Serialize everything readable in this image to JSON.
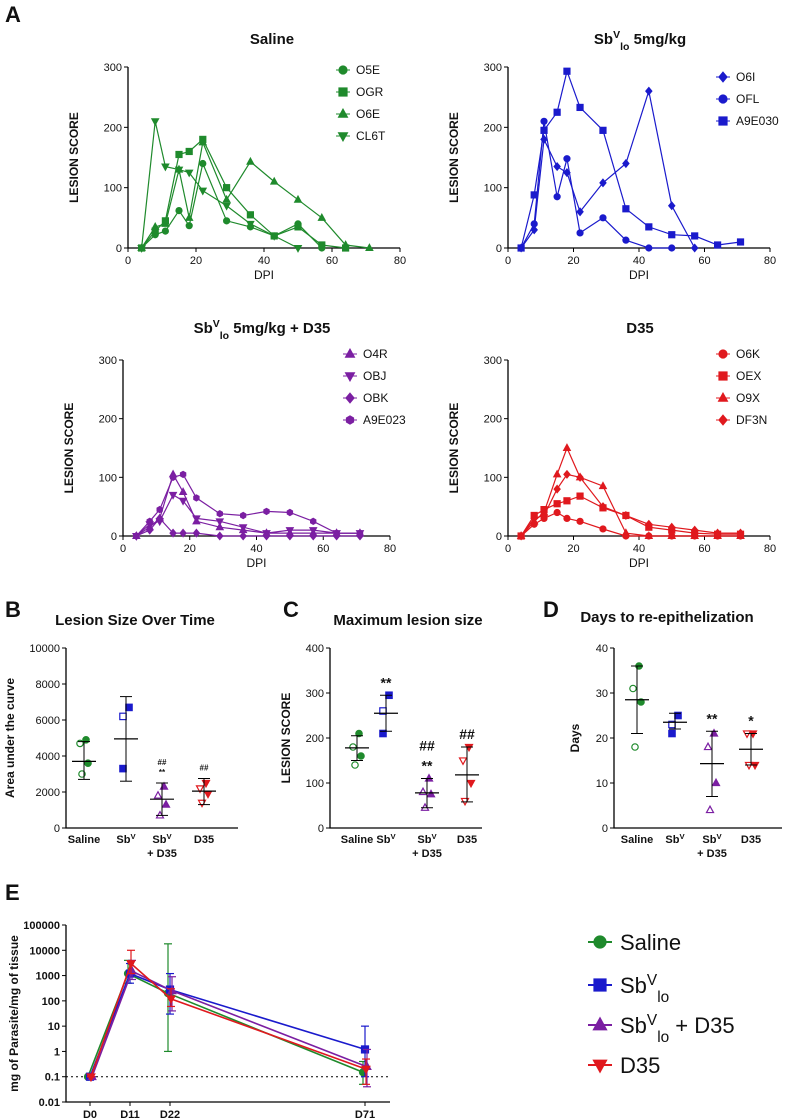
{
  "panel_labels": {
    "a": "A",
    "b": "B",
    "c": "C",
    "d": "D",
    "e": "E"
  },
  "colors": {
    "saline": "#1f8a2c",
    "sbv": "#1a1acc",
    "combo": "#7b1fa2",
    "d35": "#e0191e"
  },
  "chart_data": [
    {
      "id": "a1",
      "type": "line",
      "title": "Saline",
      "xlabel": "DPI",
      "ylabel": "LESION SCORE",
      "xlim": [
        0,
        80
      ],
      "ylim": [
        0,
        300
      ],
      "xticks": [
        "0",
        "20",
        "40",
        "60",
        "80"
      ],
      "yticks": [
        "0",
        "100",
        "200",
        "300"
      ],
      "color": "#1f8a2c",
      "series": [
        {
          "name": "O5E",
          "marker": "circle",
          "x": [
            4,
            8,
            11,
            15,
            18,
            22,
            29,
            36,
            43,
            50,
            57
          ],
          "y": [
            0,
            22,
            28,
            62,
            37,
            140,
            45,
            35,
            20,
            40,
            0
          ]
        },
        {
          "name": "OGR",
          "marker": "square",
          "x": [
            4,
            8,
            11,
            15,
            18,
            22,
            29,
            36,
            43,
            50,
            57,
            64
          ],
          "y": [
            0,
            28,
            45,
            155,
            160,
            180,
            100,
            55,
            20,
            35,
            5,
            0
          ]
        },
        {
          "name": "O6E",
          "marker": "triangle",
          "x": [
            4,
            8,
            11,
            15,
            18,
            22,
            29,
            36,
            43,
            50,
            57,
            64,
            71
          ],
          "y": [
            0,
            35,
            40,
            130,
            50,
            175,
            80,
            143,
            110,
            80,
            50,
            5,
            0
          ]
        },
        {
          "name": "CL6T",
          "marker": "triangle-down",
          "x": [
            4,
            8,
            11,
            15,
            18,
            22,
            29,
            36,
            43,
            50
          ],
          "y": [
            0,
            210,
            135,
            130,
            125,
            95,
            70,
            40,
            20,
            0
          ]
        }
      ]
    },
    {
      "id": "a2",
      "type": "line",
      "title": "Sb",
      "title_sup": "V",
      "title_sub": "lo",
      "title_rest": " 5mg/kg",
      "xlabel": "DPI",
      "ylabel": "LESION SCORE",
      "xlim": [
        0,
        80
      ],
      "ylim": [
        0,
        300
      ],
      "xticks": [
        "0",
        "20",
        "40",
        "60",
        "80"
      ],
      "yticks": [
        "0",
        "100",
        "200",
        "300"
      ],
      "color": "#1a1acc",
      "series": [
        {
          "name": "O6I",
          "marker": "diamond",
          "x": [
            4,
            8,
            11,
            15,
            18,
            22,
            29,
            36,
            43,
            50,
            57
          ],
          "y": [
            0,
            30,
            180,
            135,
            125,
            60,
            108,
            140,
            260,
            70,
            0
          ]
        },
        {
          "name": "OFL",
          "marker": "circle",
          "x": [
            4,
            8,
            11,
            15,
            18,
            22,
            29,
            36,
            43,
            50
          ],
          "y": [
            0,
            40,
            210,
            85,
            148,
            25,
            50,
            13,
            0,
            0
          ]
        },
        {
          "name": "A9E030",
          "marker": "square",
          "x": [
            4,
            8,
            11,
            15,
            18,
            22,
            29,
            36,
            43,
            50,
            57,
            64,
            71
          ],
          "y": [
            0,
            88,
            195,
            225,
            293,
            233,
            195,
            65,
            35,
            22,
            20,
            5,
            10
          ]
        }
      ]
    },
    {
      "id": "a3",
      "type": "line",
      "title": "Sb",
      "title_sup": "V",
      "title_sub": "lo",
      "title_rest": " 5mg/kg + D35",
      "xlabel": "DPI",
      "ylabel": "LESION SCORE",
      "xlim": [
        0,
        80
      ],
      "ylim": [
        0,
        300
      ],
      "xticks": [
        "0",
        "20",
        "40",
        "60",
        "80"
      ],
      "yticks": [
        "0",
        "100",
        "200",
        "300"
      ],
      "color": "#7b1fa2",
      "series": [
        {
          "name": "O4R",
          "marker": "triangle",
          "x": [
            4,
            8,
            11,
            15,
            18,
            22,
            29,
            36,
            43,
            50,
            57,
            64,
            71
          ],
          "y": [
            0,
            15,
            30,
            105,
            75,
            25,
            15,
            10,
            5,
            5,
            5,
            5,
            5
          ]
        },
        {
          "name": "OBJ",
          "marker": "triangle-down",
          "x": [
            4,
            8,
            11,
            15,
            18,
            22,
            29,
            36,
            43,
            50,
            57,
            64,
            71
          ],
          "y": [
            0,
            20,
            25,
            70,
            60,
            30,
            25,
            15,
            5,
            10,
            10,
            5,
            5
          ]
        },
        {
          "name": "OBK",
          "marker": "diamond",
          "x": [
            4,
            8,
            11,
            15,
            18,
            22,
            29,
            36,
            43,
            50,
            57,
            64,
            71
          ],
          "y": [
            0,
            10,
            30,
            5,
            5,
            5,
            0,
            0,
            0,
            0,
            0,
            0,
            0
          ]
        },
        {
          "name": "A9E023",
          "marker": "hexagon",
          "x": [
            4,
            8,
            11,
            15,
            18,
            22,
            29,
            36,
            43,
            50,
            57,
            64,
            71
          ],
          "y": [
            0,
            25,
            45,
            100,
            105,
            65,
            38,
            35,
            42,
            40,
            25,
            5,
            5
          ]
        }
      ]
    },
    {
      "id": "a4",
      "type": "line",
      "title": "D35",
      "xlabel": "DPI",
      "ylabel": "LESION SCORE",
      "xlim": [
        0,
        80
      ],
      "ylim": [
        0,
        300
      ],
      "xticks": [
        "0",
        "20",
        "40",
        "60",
        "80"
      ],
      "yticks": [
        "0",
        "100",
        "200",
        "300"
      ],
      "color": "#e0191e",
      "series": [
        {
          "name": "O6K",
          "marker": "circle",
          "x": [
            4,
            8,
            11,
            15,
            18,
            22,
            29,
            36,
            43,
            50,
            57,
            64,
            71
          ],
          "y": [
            0,
            20,
            30,
            40,
            30,
            25,
            12,
            0,
            0,
            0,
            0,
            0,
            0
          ]
        },
        {
          "name": "OEX",
          "marker": "square",
          "x": [
            4,
            8,
            11,
            15,
            18,
            22,
            29,
            36,
            43,
            50,
            57,
            64,
            71
          ],
          "y": [
            0,
            35,
            45,
            55,
            60,
            68,
            48,
            35,
            15,
            10,
            5,
            3,
            3
          ]
        },
        {
          "name": "O9X",
          "marker": "triangle",
          "x": [
            4,
            8,
            11,
            15,
            18,
            22,
            29,
            36,
            43,
            50,
            57,
            64,
            71
          ],
          "y": [
            0,
            25,
            40,
            105,
            150,
            100,
            85,
            5,
            0,
            0,
            0,
            0,
            0
          ]
        },
        {
          "name": "DF3N",
          "marker": "diamond",
          "x": [
            4,
            8,
            11,
            15,
            18,
            22,
            29,
            36,
            43,
            50,
            57,
            64,
            71
          ],
          "y": [
            0,
            30,
            35,
            80,
            105,
            100,
            50,
            35,
            20,
            15,
            10,
            5,
            5
          ]
        }
      ]
    },
    {
      "id": "b",
      "type": "scatter",
      "title": "Lesion  Size Over Time",
      "ylabel": "Area under the curve",
      "ylim": [
        0,
        10000
      ],
      "yticks": [
        "0",
        "2000",
        "4000",
        "6000",
        "8000",
        "10000"
      ],
      "categories": [
        "Saline",
        "Sb",
        "Sb",
        "D35"
      ],
      "category_sup": [
        "",
        "V",
        "V",
        ""
      ],
      "category_line2": [
        "",
        "",
        "+ D35",
        ""
      ],
      "groups": [
        {
          "points": [
            4900,
            4700,
            3600,
            3000
          ],
          "mean": 3700,
          "sd_low": 2700,
          "sd_high": 4800,
          "marker": "circle"
        },
        {
          "points": 6700,
          "points_list": [
            6700,
            6200,
            3300
          ],
          "mean": 4950,
          "sd_low": 2600,
          "sd_high": 7300,
          "marker": "square"
        },
        {
          "points_list": [
            2300,
            1800,
            1300,
            700
          ],
          "mean": 1600,
          "sd_low": 700,
          "sd_high": 2500,
          "marker": "triangle"
        },
        {
          "points_list": [
            2500,
            2200,
            1900,
            1400
          ],
          "mean": 2050,
          "sd_low": 1300,
          "sd_high": 2750,
          "marker": "triangle-down"
        }
      ],
      "annotations": [
        "",
        "",
        "##\n**",
        "##"
      ]
    },
    {
      "id": "c",
      "type": "scatter",
      "title": "Maximum lesion size",
      "ylabel": "LESION SCORE",
      "ylim": [
        0,
        400
      ],
      "yticks": [
        "0",
        "100",
        "200",
        "300",
        "400"
      ],
      "categories": [
        "Saline",
        "Sb",
        "Sb",
        "D35"
      ],
      "category_sup": [
        "",
        "V",
        "V",
        ""
      ],
      "category_line2": [
        "",
        "",
        "+ D35",
        ""
      ],
      "groups": [
        {
          "points_list": [
            210,
            180,
            160,
            140
          ],
          "mean": 178,
          "sd_low": 150,
          "sd_high": 205,
          "marker": "circle"
        },
        {
          "points_list": [
            295,
            260,
            210
          ],
          "mean": 255,
          "sd_low": 215,
          "sd_high": 295,
          "marker": "square"
        },
        {
          "points_list": [
            110,
            80,
            75,
            45
          ],
          "mean": 78,
          "sd_low": 45,
          "sd_high": 110,
          "marker": "triangle"
        },
        {
          "points_list": [
            180,
            150,
            100,
            60
          ],
          "mean": 118,
          "sd_low": 58,
          "sd_high": 180,
          "marker": "triangle-down"
        }
      ],
      "annotations": [
        "",
        "**",
        "##\n**",
        "##"
      ]
    },
    {
      "id": "d",
      "type": "scatter",
      "title": "Days to re-epithelization",
      "ylabel": "Days",
      "ylim": [
        0,
        40
      ],
      "yticks": [
        "0",
        "10",
        "20",
        "30",
        "40"
      ],
      "categories": [
        "Saline",
        "Sb",
        "Sb",
        "D35"
      ],
      "category_sup": [
        "",
        "V",
        "V",
        ""
      ],
      "category_line2": [
        "",
        "",
        "+ D35",
        ""
      ],
      "groups": [
        {
          "points_list": [
            36,
            31,
            28,
            18
          ],
          "mean": 28.5,
          "sd_low": 21,
          "sd_high": 36,
          "marker": "circle"
        },
        {
          "points_list": [
            25,
            23,
            21
          ],
          "mean": 23.5,
          "sd_low": 22,
          "sd_high": 25.5,
          "marker": "square"
        },
        {
          "points_list": [
            21,
            18,
            10,
            4
          ],
          "mean": 14.3,
          "sd_low": 7,
          "sd_high": 21.5,
          "marker": "triangle"
        },
        {
          "points_list": [
            21,
            21,
            14,
            14
          ],
          "mean": 17.5,
          "sd_low": 14,
          "sd_high": 21,
          "marker": "triangle-down"
        }
      ],
      "annotations": [
        "",
        "",
        "**",
        "*"
      ]
    },
    {
      "id": "e",
      "type": "line",
      "ylabel": "mg of Parasite/mg of tissue",
      "yscale": "log",
      "ylim": [
        0.01,
        100000
      ],
      "yticks": [
        "0.01",
        "0.1",
        "1",
        "10",
        "100",
        "1000",
        "10000",
        "100000"
      ],
      "categories": [
        "D0",
        "D11",
        "D22",
        "D71"
      ],
      "x": [
        0,
        11,
        22,
        71
      ],
      "reference_line": 0.1,
      "series": [
        {
          "name": "Saline",
          "marker": "circle",
          "values": [
            0.1,
            1200,
            200,
            0.15
          ],
          "err_low": [
            0.1,
            500,
            1,
            0.05
          ],
          "err_high": [
            0.1,
            4000,
            18000,
            0.4
          ]
        },
        {
          "name": "Sb",
          "name_sup": "V",
          "name_sub": "lo",
          "marker": "square",
          "values": [
            0.1,
            1200,
            280,
            1.2
          ],
          "err_low": [
            0.1,
            500,
            30,
            0.1
          ],
          "err_high": [
            0.1,
            3000,
            1200,
            10
          ]
        },
        {
          "name": "Sb",
          "name_sup": "V",
          "name_sub": "lo",
          "name_rest": " + D35",
          "marker": "triangle",
          "values": [
            0.1,
            1500,
            250,
            0.25
          ],
          "err_low": [
            0.1,
            700,
            40,
            0.04
          ],
          "err_high": [
            0.1,
            4000,
            900,
            1.2
          ]
        },
        {
          "name": "D35",
          "marker": "triangle-down",
          "values": [
            0.1,
            3000,
            120,
            0.2
          ],
          "err_low": [
            0.1,
            1200,
            60,
            0.05
          ],
          "err_high": [
            0.1,
            10000,
            300,
            0.5
          ]
        }
      ]
    }
  ]
}
